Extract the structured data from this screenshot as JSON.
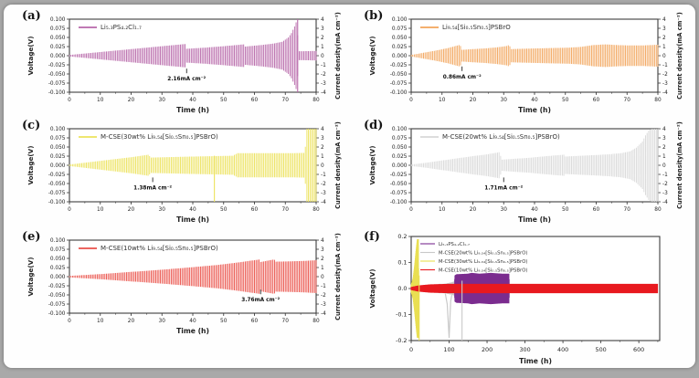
{
  "frame": {
    "background": "#a9a9a9",
    "sheet_background": "#fefefe"
  },
  "chart_data": [
    {
      "id": "a",
      "label": "(a)",
      "type": "area",
      "title": "",
      "xlabel": "Time (h)",
      "ylabel": "Voltage(V)",
      "y2label": "Current density(mA cm⁻²)",
      "xmin": 0,
      "xmax": 80,
      "ymin": -0.1,
      "ymax": 0.1,
      "x_ticks": [
        0,
        10,
        20,
        30,
        40,
        50,
        60,
        70,
        80
      ],
      "x_minor": 5,
      "y_tick_labels": [
        "0.100",
        "0.075",
        "0.050",
        "0.025",
        "0.000",
        "-0.025",
        "-0.050",
        "-0.075",
        "-0.100"
      ],
      "y2_tick_labels": [
        "4",
        "3",
        "2",
        "1",
        "0",
        "-1",
        "-2",
        "-3",
        "-4"
      ],
      "legend": [
        {
          "label": "Li₅.₃PS₄.₂Cl₁.₇",
          "color": "#b767a9"
        }
      ],
      "annotation": {
        "text": "2.16mA cm⁻²",
        "t": 38,
        "v": -0.058
      },
      "series": [
        {
          "name": "Li₅.₃PS₄.₂Cl₁.₇",
          "kind": "envelope",
          "color": "#b767a9",
          "step": 0.5,
          "points": [
            [
              0,
              0.002
            ],
            [
              5,
              0.006
            ],
            [
              10,
              0.01
            ],
            [
              15,
              0.014
            ],
            [
              20,
              0.018
            ],
            [
              25,
              0.022
            ],
            [
              30,
              0.026
            ],
            [
              37.6,
              0.032
            ],
            [
              38,
              0.019
            ],
            [
              44,
              0.022
            ],
            [
              50,
              0.026
            ],
            [
              56.6,
              0.031
            ],
            [
              57,
              0.025
            ],
            [
              62,
              0.029
            ],
            [
              66,
              0.033
            ],
            [
              69,
              0.038
            ],
            [
              71,
              0.05
            ],
            [
              72,
              0.062
            ],
            [
              73,
              0.08
            ],
            [
              73.9,
              0.1
            ],
            [
              74.1,
              0.012
            ],
            [
              80,
              0.013
            ]
          ]
        }
      ],
      "vlines": [
        {
          "t": 74,
          "v1": -0.1,
          "v2": 0.1,
          "color": "#b767a9",
          "w": 1.1
        }
      ]
    },
    {
      "id": "b",
      "label": "(b)",
      "type": "area",
      "title": "",
      "xlabel": "Time (h)",
      "ylabel": "Voltage(V)",
      "y2label": "Current density(mA cm⁻²)",
      "xmin": 0,
      "xmax": 80,
      "ymin": -0.1,
      "ymax": 0.1,
      "x_ticks": [
        0,
        10,
        20,
        30,
        40,
        50,
        60,
        70,
        80
      ],
      "x_minor": 5,
      "y_tick_labels": [
        "0.100",
        "0.075",
        "0.050",
        "0.025",
        "0.000",
        "-0.025",
        "-0.050",
        "-0.075",
        "-0.100"
      ],
      "y2_tick_labels": [
        "4",
        "3",
        "2",
        "1",
        "0",
        "-1",
        "-2",
        "-3",
        "-4"
      ],
      "legend": [
        {
          "label": "Li₉.₅₄[Si₀.₅Sn₀.₅]PSBrO",
          "color": "#f2a45a"
        }
      ],
      "annotation": {
        "text": "0.86mA cm⁻²",
        "t": 16.5,
        "v": -0.052
      },
      "series": [
        {
          "name": "Li₉.₅₄[Si₀.₅Sn₀.₅]PSBrO",
          "kind": "envelope",
          "color": "#f2a45a",
          "step": 0.5,
          "points": [
            [
              0,
              0.002
            ],
            [
              4,
              0.008
            ],
            [
              8,
              0.014
            ],
            [
              12,
              0.021
            ],
            [
              15.9,
              0.03
            ],
            [
              16.3,
              0.016
            ],
            [
              20,
              0.018
            ],
            [
              24,
              0.02
            ],
            [
              28,
              0.023
            ],
            [
              31.4,
              0.027
            ],
            [
              31.8,
              0.033
            ],
            [
              32.2,
              0.018
            ],
            [
              36,
              0.019
            ],
            [
              41,
              0.02
            ],
            [
              46,
              0.021
            ],
            [
              51,
              0.022
            ],
            [
              55,
              0.024
            ],
            [
              59,
              0.029
            ],
            [
              63,
              0.031
            ],
            [
              67,
              0.029
            ],
            [
              71,
              0.028
            ],
            [
              75,
              0.028
            ],
            [
              80,
              0.03
            ]
          ]
        }
      ],
      "vlines": []
    },
    {
      "id": "c",
      "label": "(c)",
      "type": "area",
      "title": "",
      "xlabel": "Time (h)",
      "ylabel": "Voltage(V)",
      "y2label": "Current density(mA cm⁻²)",
      "xmin": 0,
      "xmax": 80,
      "ymin": -0.1,
      "ymax": 0.1,
      "x_ticks": [
        0,
        10,
        20,
        30,
        40,
        50,
        60,
        70,
        80
      ],
      "x_minor": 5,
      "y_tick_labels": [
        "0.100",
        "0.075",
        "0.050",
        "0.025",
        "0.000",
        "-0.025",
        "-0.050",
        "-0.075",
        "-0.100"
      ],
      "y2_tick_labels": [
        "4",
        "3",
        "2",
        "1",
        "0",
        "-1",
        "-2",
        "-3",
        "-4"
      ],
      "legend": [
        {
          "label": "M-CSE(30wt% Li₉.₅₄[Si₀.₅Sn₀.₅]PSBrO)",
          "color": "#ece25b"
        }
      ],
      "annotation": {
        "text": "1.38mA cm⁻²",
        "t": 27,
        "v": -0.056
      },
      "series": [
        {
          "name": "M-CSE 30wt%",
          "kind": "envelope",
          "color": "#ece25b",
          "step": 0.5,
          "points": [
            [
              0,
              0.002
            ],
            [
              5,
              0.007
            ],
            [
              10,
              0.012
            ],
            [
              15,
              0.017
            ],
            [
              20,
              0.022
            ],
            [
              25.8,
              0.029
            ],
            [
              26.2,
              0.021
            ],
            [
              31,
              0.022
            ],
            [
              36,
              0.023
            ],
            [
              41,
              0.024
            ],
            [
              47,
              0.025
            ],
            [
              53,
              0.026
            ],
            [
              54.5,
              0.033
            ],
            [
              60,
              0.033
            ],
            [
              66,
              0.033
            ],
            [
              72,
              0.033
            ],
            [
              76.4,
              0.034
            ],
            [
              76.8,
              0.1
            ],
            [
              80,
              0.1
            ]
          ]
        }
      ],
      "vlines": [
        {
          "t": 47,
          "v1": -0.1,
          "v2": 0.026,
          "color": "#ece25b",
          "w": 1.1
        }
      ]
    },
    {
      "id": "d",
      "label": "(d)",
      "type": "area",
      "title": "",
      "xlabel": "Time (h)",
      "ylabel": "Voltage(V)",
      "y2label": "Current density(mA cm⁻²)",
      "xmin": 0,
      "xmax": 80,
      "ymin": -0.1,
      "ymax": 0.1,
      "x_ticks": [
        0,
        10,
        20,
        30,
        40,
        50,
        60,
        70,
        80
      ],
      "x_minor": 5,
      "y_tick_labels": [
        "0.100",
        "0.075",
        "0.050",
        "0.025",
        "0.000",
        "-0.025",
        "-0.050",
        "-0.075",
        "-0.100"
      ],
      "y2_tick_labels": [
        "4",
        "3",
        "2",
        "1",
        "0",
        "-1",
        "-2",
        "-3",
        "-4"
      ],
      "legend": [
        {
          "label": "M-CSE(20wt% Li₉.₅₄[Si₀.₅Sn₀.₅]PSBrO)",
          "color": "#d8d8d8"
        }
      ],
      "annotation": {
        "text": "1.71mA cm⁻²",
        "t": 30,
        "v": -0.056
      },
      "series": [
        {
          "name": "M-CSE 20wt%",
          "kind": "envelope",
          "color": "#d8d8d8",
          "step": 0.5,
          "points": [
            [
              0,
              0.002
            ],
            [
              5,
              0.007
            ],
            [
              10,
              0.013
            ],
            [
              15,
              0.019
            ],
            [
              20,
              0.025
            ],
            [
              24,
              0.029
            ],
            [
              28.8,
              0.036
            ],
            [
              29.2,
              0.015
            ],
            [
              34,
              0.018
            ],
            [
              39,
              0.021
            ],
            [
              44,
              0.025
            ],
            [
              49.6,
              0.029
            ],
            [
              50,
              0.024
            ],
            [
              55,
              0.026
            ],
            [
              60,
              0.028
            ],
            [
              64,
              0.03
            ],
            [
              68,
              0.033
            ],
            [
              71,
              0.038
            ],
            [
              73,
              0.048
            ],
            [
              75,
              0.065
            ],
            [
              76,
              0.082
            ],
            [
              77,
              0.095
            ],
            [
              78,
              0.1
            ],
            [
              80,
              0.1
            ]
          ]
        }
      ],
      "vlines": []
    },
    {
      "id": "e",
      "label": "(e)",
      "type": "area",
      "title": "",
      "xlabel": "Time (h)",
      "ylabel": "Voltage(V)",
      "y2label": "Current density(mA cm⁻²)",
      "xmin": 0,
      "xmax": 80,
      "ymin": -0.1,
      "ymax": 0.1,
      "x_ticks": [
        0,
        10,
        20,
        30,
        40,
        50,
        60,
        70,
        80
      ],
      "x_minor": 5,
      "y_tick_labels": [
        "0.100",
        "0.075",
        "0.050",
        "0.025",
        "0.000",
        "-0.025",
        "-0.050",
        "-0.075",
        "-0.100"
      ],
      "y2_tick_labels": [
        "4",
        "3",
        "2",
        "1",
        "0",
        "-1",
        "-2",
        "-3",
        "-4"
      ],
      "legend": [
        {
          "label": "M-CSE(10wt% Li₉.₅₄[Si₀.₅Sn₀.₅]PSBrO)",
          "color": "#ea5149"
        }
      ],
      "annotation": {
        "text": "3.76mA cm⁻²",
        "t": 62,
        "v": -0.058
      },
      "series": [
        {
          "name": "M-CSE 10wt%",
          "kind": "envelope",
          "color": "#ea5149",
          "step": 0.5,
          "points": [
            [
              0,
              0.002
            ],
            [
              10,
              0.007
            ],
            [
              20,
              0.013
            ],
            [
              30,
              0.019
            ],
            [
              40,
              0.026
            ],
            [
              48,
              0.032
            ],
            [
              54,
              0.038
            ],
            [
              61.6,
              0.047
            ],
            [
              62,
              0.04
            ],
            [
              65,
              0.045
            ],
            [
              66.4,
              0.047
            ],
            [
              67,
              0.041
            ],
            [
              72,
              0.042
            ],
            [
              76,
              0.043
            ],
            [
              80,
              0.045
            ]
          ]
        }
      ],
      "vlines": []
    },
    {
      "id": "f",
      "label": "(f)",
      "type": "area",
      "title": "",
      "xlabel": "Time (h)",
      "ylabel": "Voltage(V)",
      "y2label": "",
      "xmin": 0,
      "xmax": 655,
      "ymin": -0.2,
      "ymax": 0.2,
      "x_ticks": [
        0,
        100,
        200,
        300,
        400,
        500,
        600
      ],
      "x_minor": 50,
      "y_tick_labels": [
        "0.2",
        "0.1",
        "0.0",
        "-0.1",
        "-0.2"
      ],
      "y2_tick_labels": [],
      "legend": [
        {
          "label": "Li₅.₃PS₄.₂Cl₁.₇",
          "color": "#7b2c8f"
        },
        {
          "label": "M-CSE(20wt% Li₉.₅₄[Si₀.₅Sn₀.₅]PSBrO)",
          "color": "#c9c9c9"
        },
        {
          "label": "M-CSE(30wt% Li₉.₅₄[Si₀.₅Sn₀.₅]PSBrO)",
          "color": "#e9df52"
        },
        {
          "label": "M-CSE(10wt% Li₉.₅₄[Si₀.₅Sn₀.₅]PSBrO)",
          "color": "#e8191f"
        }
      ],
      "annotation": null,
      "series": [
        {
          "name": "M-CSE 30wt%",
          "kind": "envelope",
          "color": "#e9df52",
          "step": 0.6,
          "points": [
            [
              0,
              0.015
            ],
            [
              5,
              0.04
            ],
            [
              9,
              0.09
            ],
            [
              13,
              0.15
            ],
            [
              16,
              0.19
            ],
            [
              19.5,
              0.19
            ],
            [
              20,
              0.002
            ]
          ]
        },
        {
          "name": "M-CSE 20wt%",
          "kind": "envelope",
          "color": "#c9c9c9",
          "step": 0.8,
          "points": [
            [
              35,
              0.008
            ],
            [
              45,
              0.012
            ],
            [
              55,
              0.014
            ],
            [
              65,
              0.016
            ],
            [
              75,
              0.018
            ],
            [
              85,
              0.018
            ],
            [
              95,
              0.02
            ],
            [
              108,
              0.024
            ],
            [
              115,
              0.028
            ],
            [
              125,
              0.03
            ],
            [
              134,
              0.03
            ]
          ]
        },
        {
          "name": "M-CSE 20wt% polarization spike",
          "kind": "line",
          "color": "#c9c9c9",
          "w": 1.2,
          "points": [
            [
              90,
              -0.02
            ],
            [
              95,
              -0.06
            ],
            [
              100,
              -0.19
            ],
            [
              104,
              -0.05
            ],
            [
              107,
              -0.025
            ]
          ]
        },
        {
          "name": "Li₅.₃PS₄.₂Cl₁.₇",
          "kind": "envelope",
          "color": "#7b2c8f",
          "step": 0.7,
          "points": [
            [
              114,
              0.003
            ],
            [
              115,
              0.05
            ],
            [
              120,
              0.055
            ],
            [
              150,
              0.057
            ],
            [
              160,
              0.06
            ],
            [
              180,
              0.057
            ],
            [
              210,
              0.06
            ],
            [
              240,
              0.057
            ],
            [
              258,
              0.057
            ],
            [
              258.5,
              0.003
            ]
          ]
        },
        {
          "name": "M-CSE 10wt%",
          "kind": "envelope",
          "color": "#e8191f",
          "step": 1.2,
          "points": [
            [
              0,
              0.006
            ],
            [
              20,
              0.012
            ],
            [
              50,
              0.016
            ],
            [
              100,
              0.018
            ],
            [
              650,
              0.018
            ]
          ]
        }
      ],
      "vlines": [
        {
          "t": 21,
          "v1": -0.2,
          "v2": 0.05,
          "color": "#e9df52",
          "w": 1.1
        },
        {
          "t": 134,
          "v1": -0.2,
          "v2": 0.03,
          "color": "#c9c9c9",
          "w": 1.1
        }
      ]
    }
  ]
}
